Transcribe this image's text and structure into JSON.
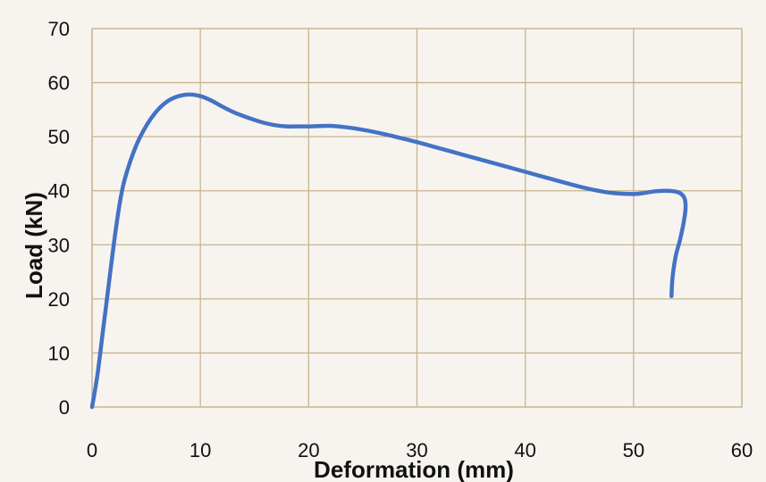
{
  "chart_data": {
    "type": "line",
    "title": "",
    "xlabel": "Deformation (mm)",
    "ylabel": "Load (kN)",
    "xlim": [
      0,
      60
    ],
    "ylim": [
      0,
      70
    ],
    "xticks": [
      "0",
      "10",
      "20",
      "30",
      "40",
      "50",
      "60"
    ],
    "yticks": [
      "0",
      "10",
      "20",
      "30",
      "40",
      "50",
      "60",
      "70"
    ],
    "grid": true,
    "legend": "none",
    "line_color": "#4472c4",
    "series": [
      {
        "x": [
          0,
          0.5,
          1,
          1.5,
          2,
          2.5,
          3,
          4,
          5,
          6,
          7,
          8,
          9,
          10,
          11,
          12,
          13,
          14,
          15,
          16,
          17,
          18,
          19,
          20,
          22,
          24,
          26,
          28,
          30,
          32,
          34,
          36,
          38,
          40,
          42,
          44,
          46,
          48,
          50,
          51,
          52,
          53,
          54,
          54.6,
          54.8,
          54.7,
          54.3,
          53.9,
          53.6,
          53.5
        ],
        "y": [
          0,
          6,
          14,
          22,
          30,
          37,
          42,
          48,
          52,
          54.8,
          56.6,
          57.5,
          57.8,
          57.5,
          56.7,
          55.6,
          54.6,
          53.8,
          53.1,
          52.5,
          52.1,
          51.9,
          51.9,
          51.9,
          52,
          51.6,
          50.9,
          50,
          49,
          47.9,
          46.8,
          45.7,
          44.6,
          43.5,
          42.4,
          41.3,
          40.3,
          39.6,
          39.4,
          39.6,
          39.9,
          40,
          39.8,
          39,
          37.5,
          35,
          31,
          28,
          24,
          20.5
        ]
      }
    ]
  }
}
